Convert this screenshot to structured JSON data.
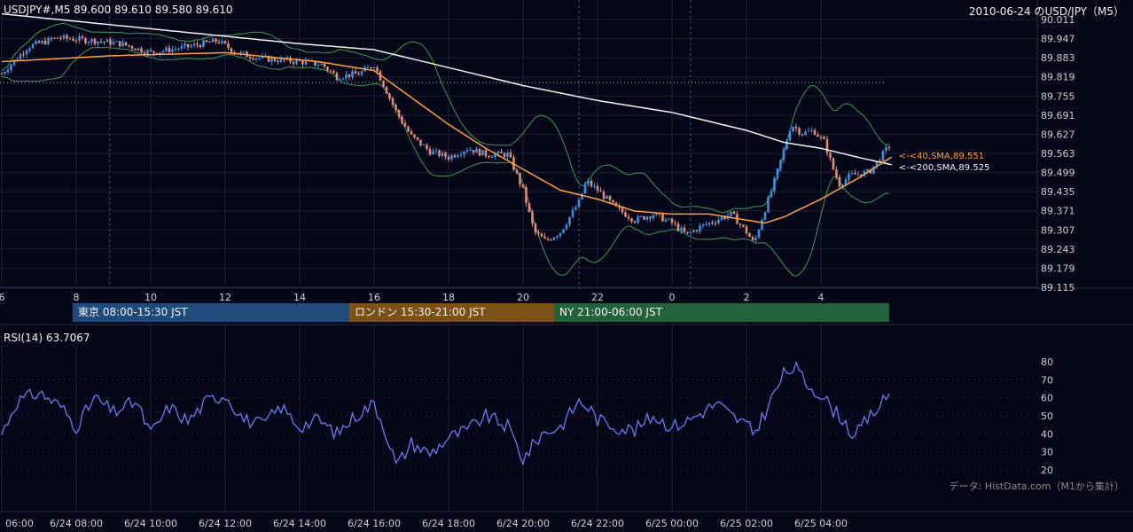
{
  "header": {
    "symbol_info": "USDJPY#,M5 89.600 89.610 89.580 89.610",
    "chart_title": "2010-06-24 のUSD/JPY（M5）"
  },
  "sessions": [
    {
      "label": "東京 08:00-15:30 JST",
      "color": "#1f4a7a"
    },
    {
      "label": "ロンドン 15:30-21:00 JST",
      "color": "#7a5116"
    },
    {
      "label": "NY 21:00-06:00 JST",
      "color": "#23623c"
    }
  ],
  "rsi": {
    "label": "RSI(14) 63.7067"
  },
  "credit": "データ: HistData.com（M1から集計）",
  "colors": {
    "background": "#050617",
    "bull": "#3d8fe0",
    "bear": "#e08a78",
    "sma40": "#ffa23a",
    "sma200": "#f2f2f2",
    "bollinger": "#3a9a5a",
    "rsi_line": "#6b7cf0",
    "grid": "#1c1f33"
  },
  "chart_data": [
    {
      "type": "candlestick",
      "title": "2010-06-24 のUSD/JPY（M5）",
      "x_tick_labels": [
        "6",
        "8",
        "10",
        "12",
        "14",
        "16",
        "18",
        "20",
        "22",
        "0",
        "2",
        "4"
      ],
      "y_tick_labels": [
        "90.011",
        "89.947",
        "89.883",
        "89.819",
        "89.755",
        "89.691",
        "89.627",
        "89.563",
        "89.499",
        "89.435",
        "89.371",
        "89.307",
        "89.243",
        "89.179",
        "89.115"
      ],
      "ylim": [
        89.115,
        90.011
      ],
      "reference_level": 89.8,
      "vertical_markers_hours": [
        8.9,
        21.5,
        24.5
      ],
      "anchors_close": [
        [
          6.0,
          89.83
        ],
        [
          6.7,
          89.92
        ],
        [
          7.5,
          89.95
        ],
        [
          8.5,
          89.94
        ],
        [
          9.2,
          89.93
        ],
        [
          10.0,
          89.9
        ],
        [
          11.0,
          89.92
        ],
        [
          11.8,
          89.94
        ],
        [
          12.3,
          89.9
        ],
        [
          13.0,
          89.88
        ],
        [
          14.0,
          89.87
        ],
        [
          14.6,
          89.86
        ],
        [
          15.0,
          89.82
        ],
        [
          15.6,
          89.83
        ],
        [
          16.0,
          89.86
        ],
        [
          16.3,
          89.78
        ],
        [
          16.6,
          89.7
        ],
        [
          17.0,
          89.62
        ],
        [
          17.5,
          89.57
        ],
        [
          18.0,
          89.55
        ],
        [
          18.5,
          89.58
        ],
        [
          19.0,
          89.56
        ],
        [
          19.6,
          89.56
        ],
        [
          20.0,
          89.44
        ],
        [
          20.3,
          89.3
        ],
        [
          20.6,
          89.27
        ],
        [
          21.0,
          89.3
        ],
        [
          21.5,
          89.4
        ],
        [
          21.7,
          89.47
        ],
        [
          22.0,
          89.44
        ],
        [
          22.5,
          89.38
        ],
        [
          23.0,
          89.34
        ],
        [
          23.5,
          89.36
        ],
        [
          24.0,
          89.33
        ],
        [
          24.4,
          89.29
        ],
        [
          24.8,
          89.32
        ],
        [
          25.2,
          89.34
        ],
        [
          25.6,
          89.36
        ],
        [
          26.0,
          89.3
        ],
        [
          26.2,
          89.26
        ],
        [
          26.4,
          89.34
        ],
        [
          26.7,
          89.45
        ],
        [
          26.9,
          89.53
        ],
        [
          27.2,
          89.66
        ],
        [
          27.5,
          89.63
        ],
        [
          27.8,
          89.64
        ],
        [
          28.1,
          89.6
        ],
        [
          28.3,
          89.52
        ],
        [
          28.5,
          89.46
        ],
        [
          28.8,
          89.49
        ],
        [
          29.3,
          89.5
        ],
        [
          29.6,
          89.55
        ],
        [
          29.9,
          89.6
        ]
      ],
      "series": [
        {
          "name": "40,SMA",
          "last_value": 89.551,
          "label": "<-<40,SMA,89.551"
        },
        {
          "name": "200,SMA",
          "last_value": 89.525,
          "label": "<-<200,SMA,89.525"
        }
      ],
      "sma40_anchors": [
        [
          6.0,
          89.87
        ],
        [
          9.0,
          89.89
        ],
        [
          12.0,
          89.9
        ],
        [
          14.5,
          89.87
        ],
        [
          16.0,
          89.84
        ],
        [
          17.0,
          89.75
        ],
        [
          18.0,
          89.66
        ],
        [
          19.0,
          89.58
        ],
        [
          20.0,
          89.51
        ],
        [
          21.0,
          89.44
        ],
        [
          22.0,
          89.41
        ],
        [
          23.0,
          89.37
        ],
        [
          24.0,
          89.36
        ],
        [
          25.0,
          89.36
        ],
        [
          26.0,
          89.34
        ],
        [
          26.5,
          89.33
        ],
        [
          27.0,
          89.35
        ],
        [
          28.0,
          89.41
        ],
        [
          29.0,
          89.48
        ],
        [
          29.9,
          89.551
        ]
      ],
      "sma200_anchors": [
        [
          6.0,
          90.03
        ],
        [
          10.0,
          89.98
        ],
        [
          14.0,
          89.93
        ],
        [
          16.0,
          89.91
        ],
        [
          18.0,
          89.85
        ],
        [
          20.0,
          89.79
        ],
        [
          22.0,
          89.74
        ],
        [
          24.0,
          89.7
        ],
        [
          25.0,
          89.67
        ],
        [
          26.0,
          89.64
        ],
        [
          27.0,
          89.6
        ],
        [
          28.0,
          89.58
        ],
        [
          29.0,
          89.55
        ],
        [
          29.9,
          89.525
        ]
      ]
    },
    {
      "type": "line",
      "title": "RSI(14) 63.7067",
      "x_tick_labels": [
        "06:00",
        "6/24 08:00",
        "6/24 10:00",
        "6/24 12:00",
        "6/24 14:00",
        "6/24 16:00",
        "6/24 18:00",
        "6/24 20:00",
        "6/24 22:00",
        "6/25 00:00",
        "6/25 02:00",
        "6/25 04:00"
      ],
      "y_tick_labels": [
        "80",
        "70",
        "60",
        "50",
        "40",
        "30",
        "20"
      ],
      "ylim": [
        20,
        80
      ],
      "anchors": [
        [
          6.0,
          40
        ],
        [
          6.4,
          58
        ],
        [
          7.0,
          63
        ],
        [
          7.6,
          55
        ],
        [
          8.0,
          44
        ],
        [
          8.5,
          60
        ],
        [
          9.0,
          52
        ],
        [
          9.6,
          58
        ],
        [
          10.0,
          40
        ],
        [
          10.5,
          55
        ],
        [
          11.0,
          47
        ],
        [
          11.5,
          58
        ],
        [
          12.0,
          62
        ],
        [
          12.5,
          48
        ],
        [
          13.0,
          45
        ],
        [
          13.5,
          55
        ],
        [
          14.0,
          44
        ],
        [
          14.5,
          48
        ],
        [
          15.0,
          40
        ],
        [
          15.5,
          50
        ],
        [
          16.0,
          57
        ],
        [
          16.3,
          42
        ],
        [
          16.6,
          22
        ],
        [
          17.0,
          35
        ],
        [
          17.5,
          29
        ],
        [
          18.0,
          38
        ],
        [
          18.5,
          42
        ],
        [
          19.0,
          50
        ],
        [
          19.6,
          44
        ],
        [
          20.0,
          26
        ],
        [
          20.5,
          40
        ],
        [
          21.0,
          44
        ],
        [
          21.5,
          58
        ],
        [
          21.8,
          54
        ],
        [
          22.0,
          48
        ],
        [
          22.5,
          44
        ],
        [
          23.0,
          42
        ],
        [
          23.5,
          50
        ],
        [
          24.0,
          44
        ],
        [
          24.4,
          47
        ],
        [
          24.8,
          52
        ],
        [
          25.2,
          57
        ],
        [
          25.6,
          50
        ],
        [
          26.0,
          45
        ],
        [
          26.2,
          40
        ],
        [
          26.5,
          52
        ],
        [
          27.0,
          73
        ],
        [
          27.3,
          77
        ],
        [
          27.6,
          68
        ],
        [
          28.0,
          62
        ],
        [
          28.3,
          54
        ],
        [
          28.6,
          48
        ],
        [
          28.9,
          38
        ],
        [
          29.2,
          47
        ],
        [
          29.6,
          56
        ],
        [
          29.9,
          64
        ]
      ]
    }
  ]
}
